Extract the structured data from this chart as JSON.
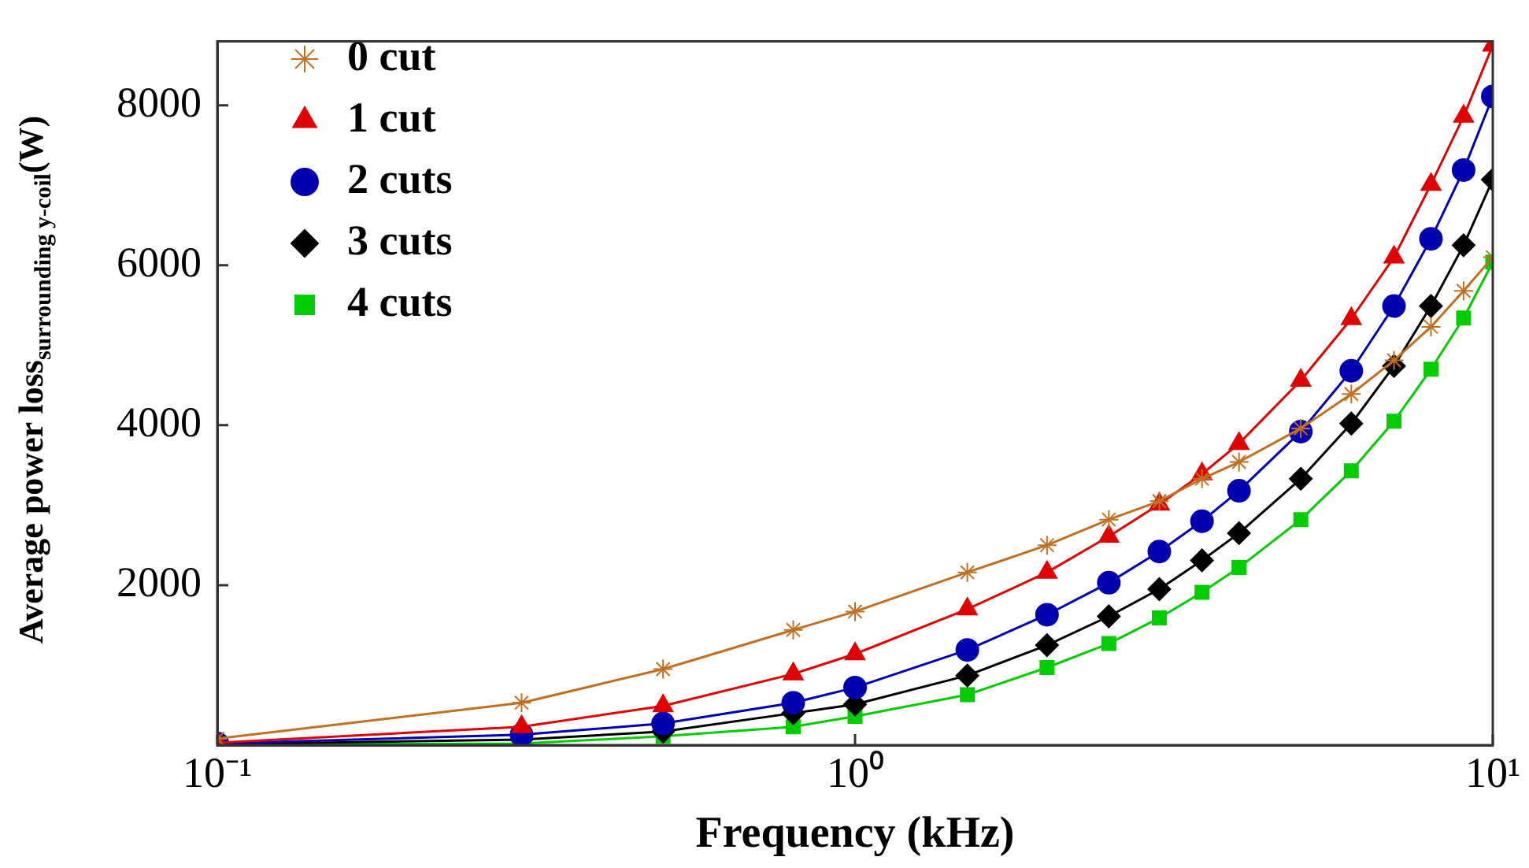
{
  "chart_data": {
    "type": "line",
    "xlabel": "Frequency (kHz)",
    "ylabel": "Average power loss$_{surrounding y-coil}$(W)",
    "x": [
      0.1,
      0.3,
      0.5,
      0.8,
      1,
      1.5,
      2,
      2.5,
      3,
      3.5,
      4,
      5,
      6,
      7,
      8,
      9,
      10
    ],
    "series": [
      {
        "name": "0 cut",
        "color": "#c07020",
        "marker": "cross",
        "values": [
          80,
          530,
          950,
          1440,
          1670,
          2160,
          2500,
          2820,
          3050,
          3330,
          3540,
          3960,
          4390,
          4810,
          5230,
          5680,
          6100
        ]
      },
      {
        "name": "1 cut",
        "color": "#e00000",
        "marker": "triangle",
        "values": [
          30,
          230,
          490,
          890,
          1140,
          1700,
          2160,
          2610,
          3010,
          3390,
          3770,
          4560,
          5330,
          6100,
          7010,
          7860,
          8750
        ]
      },
      {
        "name": "2 cuts",
        "color": "#0000b0",
        "marker": "circle",
        "values": [
          20,
          130,
          270,
          530,
          720,
          1190,
          1630,
          2030,
          2420,
          2800,
          3180,
          3920,
          4680,
          5490,
          6330,
          7190,
          8110
        ]
      },
      {
        "name": "3 cuts",
        "color": "#000000",
        "marker": "diamond",
        "values": [
          10,
          70,
          170,
          400,
          510,
          870,
          1250,
          1610,
          1950,
          2310,
          2650,
          3330,
          4020,
          4740,
          5490,
          6250,
          7070
        ]
      },
      {
        "name": "4 cuts",
        "color": "#00cc00",
        "marker": "square",
        "values": [
          10,
          20,
          110,
          230,
          360,
          630,
          970,
          1270,
          1590,
          1910,
          2220,
          2820,
          3430,
          4050,
          4700,
          5340,
          6040
        ]
      }
    ],
    "log": "x",
    "xlim": [
      0.1,
      10
    ],
    "xticks": [
      {
        "value": 0.1,
        "label": "10⁻¹"
      },
      {
        "value": 1,
        "label": "10⁰"
      },
      {
        "value": 10,
        "label": "10¹"
      }
    ],
    "ylim": [
      0,
      8800
    ],
    "yticks": [
      2000,
      4000,
      6000,
      8000
    ],
    "grid": false,
    "legend": "top left"
  }
}
